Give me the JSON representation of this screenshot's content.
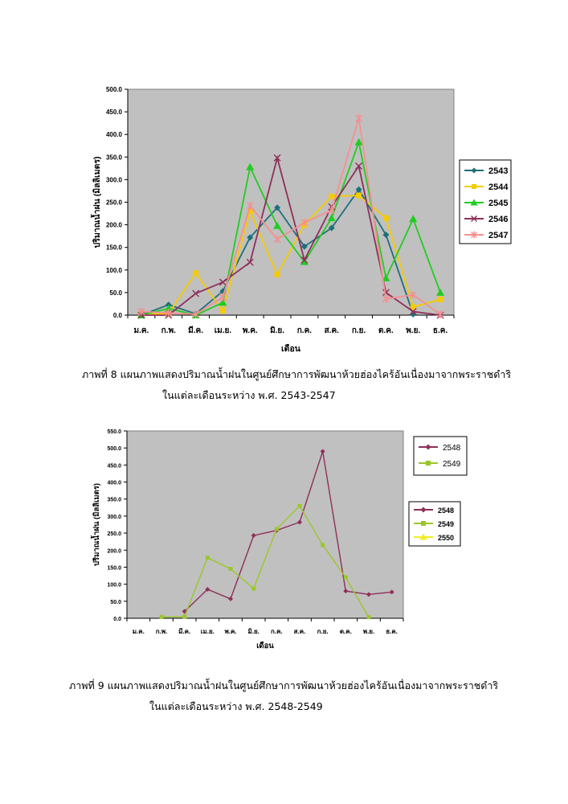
{
  "chart_data": [
    {
      "type": "line",
      "categories": [
        "ม.ค.",
        "ก.พ.",
        "มี.ค.",
        "เม.ย.",
        "พ.ค.",
        "มิ.ย.",
        "ก.ค.",
        "ส.ค.",
        "ก.ย.",
        "ต.ค.",
        "พ.ย.",
        "ธ.ค."
      ],
      "ylabel": "ปริมาณน้ำฝน (มิลลิเมตร)",
      "xlabel": "เดือน",
      "ylim": [
        0,
        500
      ],
      "ytick_labels": [
        "0.0",
        "50.0",
        "100.0",
        "150.0",
        "200.0",
        "250.0",
        "300.0",
        "350.0",
        "400.0",
        "450.0",
        "500.0"
      ],
      "grid": false,
      "legend_position": "right",
      "series": [
        {
          "name": "2543",
          "color": "#1f6f7a",
          "marker": "diamond",
          "values": [
            0,
            23,
            3,
            53,
            172,
            238,
            152,
            193,
            278,
            178,
            2,
            null
          ]
        },
        {
          "name": "2544",
          "color": "#f5cc00",
          "marker": "square",
          "values": [
            2,
            3,
            93,
            10,
            230,
            90,
            200,
            263,
            265,
            215,
            18,
            35
          ]
        },
        {
          "name": "2545",
          "color": "#22cc22",
          "marker": "triangle",
          "values": [
            0,
            15,
            0,
            28,
            328,
            198,
            118,
            215,
            383,
            82,
            213,
            50
          ]
        },
        {
          "name": "2546",
          "color": "#8e2f5a",
          "marker": "x",
          "values": [
            0,
            0,
            48,
            73,
            117,
            348,
            122,
            240,
            330,
            50,
            8,
            0
          ]
        },
        {
          "name": "2547",
          "color": "#f49090",
          "marker": "asterisk",
          "values": [
            8,
            5,
            2,
            40,
            242,
            168,
            205,
            232,
            436,
            36,
            45,
            2
          ]
        }
      ]
    },
    {
      "type": "line",
      "categories": [
        "ม.ค.",
        "ก.พ.",
        "มี.ค.",
        "เม.ย.",
        "พ.ค.",
        "มิ.ย.",
        "ก.ค.",
        "ส.ค.",
        "ก.ย.",
        "ต.ค.",
        "พ.ย.",
        "ธ.ค."
      ],
      "ylabel": "ปริมาณน้ำฝน (มิลลิเมตร)",
      "xlabel": "เดือน",
      "ylim": [
        0,
        550
      ],
      "ytick_labels": [
        "0.0",
        "50.0",
        "100.0",
        "150.0",
        "200.0",
        "250.0",
        "300.0",
        "350.0",
        "400.0",
        "450.0",
        "500.0",
        "550.0"
      ],
      "grid": false,
      "legend_position": "right",
      "legend_top": [
        "2548",
        "2549"
      ],
      "legend_bottom": [
        "2548",
        "2549",
        "2550"
      ],
      "series": [
        {
          "name": "2548",
          "color": "#8e2f5a",
          "marker": "diamond",
          "values": [
            null,
            null,
            20,
            85,
            57,
            243,
            258,
            282,
            490,
            80,
            70,
            77
          ]
        },
        {
          "name": "2549",
          "color": "#9bc62a",
          "marker": "square",
          "values": [
            null,
            4,
            5,
            178,
            145,
            87,
            262,
            330,
            215,
            120,
            3,
            null
          ]
        },
        {
          "name": "2550",
          "color": "#eeee22",
          "marker": "triangle",
          "values": [
            null,
            null,
            null,
            null,
            null,
            null,
            null,
            null,
            null,
            null,
            null,
            null
          ]
        }
      ]
    }
  ],
  "captions": {
    "fig8_line1": "ภาพที่ 8   แผนภาพแสดงปริมาณน้ำฝนในศูนย์ศึกษาการพัฒนาห้วยฮ่องไคร้อันเนื่องมาจากพระราชดำริ",
    "fig8_line2": "ในแต่ละเดือนระหว่าง พ.ศ. 2543-2547",
    "fig9_line1": "ภาพที่ 9   แผนภาพแสดงปริมาณน้ำฝนในศูนย์ศึกษาการพัฒนาห้วยฮ่องไคร้อันเนื่องมาจากพระราชดำริ",
    "fig9_line2": "ในแต่ละเดือนระหว่าง พ.ศ. 2548-2549"
  }
}
